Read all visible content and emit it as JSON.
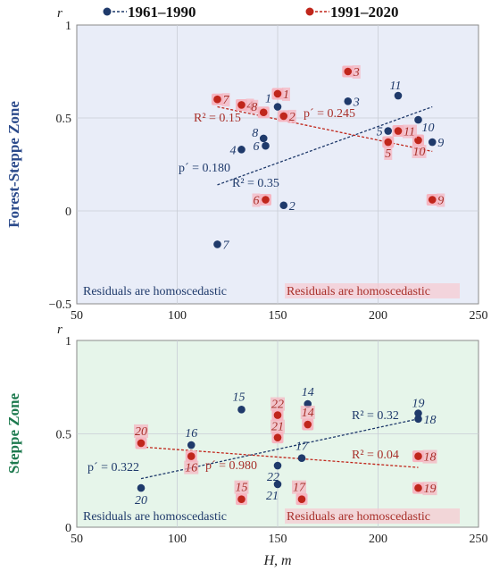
{
  "legend": [
    {
      "label": "1961–1990",
      "color": "#1f3a6b"
    },
    {
      "label": "1991–2020",
      "color": "#c0261b"
    }
  ],
  "colors": {
    "series1": "#1f3a6b",
    "series2": "#c0261b",
    "label1": "#1f3a6b",
    "label2": "#a8302a",
    "halo2": "#f6b6c1",
    "ylabel_top": "#2b4a8b",
    "ylabel_bottom": "#1e7a4f",
    "panel_top_bg": "#e9edf8",
    "panel_bottom_bg": "#e6f5ea"
  },
  "chart_data": [
    {
      "type": "scatter",
      "panel": "top",
      "ylabel": "Forest-Steppe Zone",
      "y_axis_symbol": "r",
      "xlim": [
        50,
        250
      ],
      "ylim": [
        -0.5,
        1
      ],
      "xticks": [
        50,
        100,
        150,
        200,
        250
      ],
      "yticks": [
        -0.5,
        0,
        0.5,
        1
      ],
      "ytick_labels": [
        "−0.5",
        "0",
        "0.5",
        "1"
      ],
      "grid": true,
      "series": [
        {
          "name": "1961–1990",
          "points": [
            {
              "x": 150,
              "y": 0.56,
              "label": "1"
            },
            {
              "x": 153,
              "y": 0.03,
              "label": "2"
            },
            {
              "x": 185,
              "y": 0.59,
              "label": "3"
            },
            {
              "x": 132,
              "y": 0.33,
              "label": "4"
            },
            {
              "x": 205,
              "y": 0.43,
              "label": "5"
            },
            {
              "x": 144,
              "y": 0.35,
              "label": "6"
            },
            {
              "x": 120,
              "y": -0.18,
              "label": "7"
            },
            {
              "x": 143,
              "y": 0.39,
              "label": "8"
            },
            {
              "x": 227,
              "y": 0.37,
              "label": "9"
            },
            {
              "x": 220,
              "y": 0.49,
              "label": "10"
            },
            {
              "x": 210,
              "y": 0.62,
              "label": "11"
            }
          ],
          "trend": {
            "x": [
              120,
              227
            ],
            "y": [
              0.14,
              0.56
            ]
          },
          "annotations": [
            "R² = 0.35",
            "p´ = 0.180"
          ]
        },
        {
          "name": "1991–2020",
          "points": [
            {
              "x": 150,
              "y": 0.63,
              "label": "1"
            },
            {
              "x": 153,
              "y": 0.51,
              "label": "2"
            },
            {
              "x": 185,
              "y": 0.75,
              "label": "3"
            },
            {
              "x": 132,
              "y": 0.57,
              "label": "4"
            },
            {
              "x": 205,
              "y": 0.37,
              "label": "5"
            },
            {
              "x": 144,
              "y": 0.06,
              "label": "6"
            },
            {
              "x": 120,
              "y": 0.6,
              "label": "7"
            },
            {
              "x": 143,
              "y": 0.53,
              "label": "8"
            },
            {
              "x": 227,
              "y": 0.06,
              "label": "9"
            },
            {
              "x": 220,
              "y": 0.38,
              "label": "10"
            },
            {
              "x": 210,
              "y": 0.43,
              "label": "11"
            }
          ],
          "trend": {
            "x": [
              120,
              227
            ],
            "y": [
              0.56,
              0.32
            ]
          },
          "annotations": [
            "R² = 0.15",
            "p´ = 0.245"
          ]
        }
      ],
      "notes": [
        "Residuals are homoscedastic",
        "Residuals are homoscedastic"
      ]
    },
    {
      "type": "scatter",
      "panel": "bottom",
      "ylabel": "Steppe Zone",
      "y_axis_symbol": "r",
      "xlabel": "H, m",
      "xlim": [
        50,
        250
      ],
      "ylim": [
        0,
        1
      ],
      "xticks": [
        50,
        100,
        150,
        200,
        250
      ],
      "yticks": [
        0,
        0.5,
        1
      ],
      "ytick_labels": [
        "0",
        "0.5",
        "1"
      ],
      "grid": true,
      "series": [
        {
          "name": "1961–1990",
          "points": [
            {
              "x": 165,
              "y": 0.66,
              "label": "14"
            },
            {
              "x": 132,
              "y": 0.63,
              "label": "15"
            },
            {
              "x": 107,
              "y": 0.44,
              "label": "16"
            },
            {
              "x": 162,
              "y": 0.37,
              "label": "17"
            },
            {
              "x": 220,
              "y": 0.58,
              "label": "18"
            },
            {
              "x": 220,
              "y": 0.61,
              "label": "19"
            },
            {
              "x": 82,
              "y": 0.21,
              "label": "20"
            },
            {
              "x": 150,
              "y": 0.23,
              "label": "21"
            },
            {
              "x": 150,
              "y": 0.33,
              "label": "22"
            }
          ],
          "trend": {
            "x": [
              82,
              220
            ],
            "y": [
              0.26,
              0.58
            ]
          },
          "annotations": [
            "R² = 0.32",
            "p´ = 0.322"
          ]
        },
        {
          "name": "1991–2020",
          "points": [
            {
              "x": 165,
              "y": 0.55,
              "label": "14"
            },
            {
              "x": 132,
              "y": 0.15,
              "label": "15"
            },
            {
              "x": 107,
              "y": 0.38,
              "label": "16"
            },
            {
              "x": 162,
              "y": 0.15,
              "label": "17"
            },
            {
              "x": 220,
              "y": 0.38,
              "label": "18"
            },
            {
              "x": 220,
              "y": 0.21,
              "label": "19"
            },
            {
              "x": 82,
              "y": 0.45,
              "label": "20"
            },
            {
              "x": 150,
              "y": 0.48,
              "label": "21"
            },
            {
              "x": 150,
              "y": 0.6,
              "label": "22"
            }
          ],
          "trend": {
            "x": [
              82,
              220
            ],
            "y": [
              0.43,
              0.32
            ]
          },
          "annotations": [
            "R² = 0.04",
            "p´ = 0.980"
          ]
        }
      ],
      "notes": [
        "Residuals are homoscedastic",
        "Residuals are homoscedastic"
      ]
    }
  ]
}
